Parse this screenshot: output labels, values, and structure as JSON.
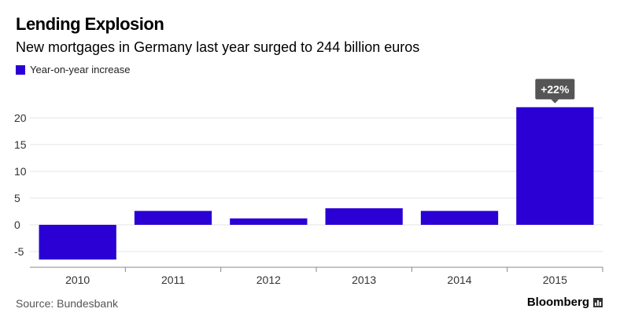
{
  "header": {
    "title": "Lending Explosion",
    "subtitle": "New mortgages in Germany last year surged to 244 billion euros"
  },
  "footer": {
    "source": "Source: Bundesbank",
    "brand": "Bloomberg"
  },
  "colors": {
    "bar": "#2a00d4",
    "callout_bg": "#555555",
    "grid": "#e6e6e6",
    "axis": "#888888"
  },
  "chart_data": {
    "type": "bar",
    "categories": [
      "2010",
      "2011",
      "2012",
      "2013",
      "2014",
      "2015"
    ],
    "series": [
      {
        "name": "Year-on-year increase",
        "values": [
          -6.5,
          2.6,
          1.2,
          3.1,
          2.6,
          22
        ]
      }
    ],
    "ylim": [
      -7.5,
      25
    ],
    "yticks": [
      -5,
      0,
      5,
      10,
      15,
      20
    ],
    "yticklabels": [
      "-5",
      "0",
      "5",
      "10",
      "15",
      "20"
    ],
    "annotation": {
      "category": "2015",
      "text": "+22%"
    },
    "legend": "top-left",
    "grid": true,
    "xlabel": "",
    "ylabel": ""
  }
}
